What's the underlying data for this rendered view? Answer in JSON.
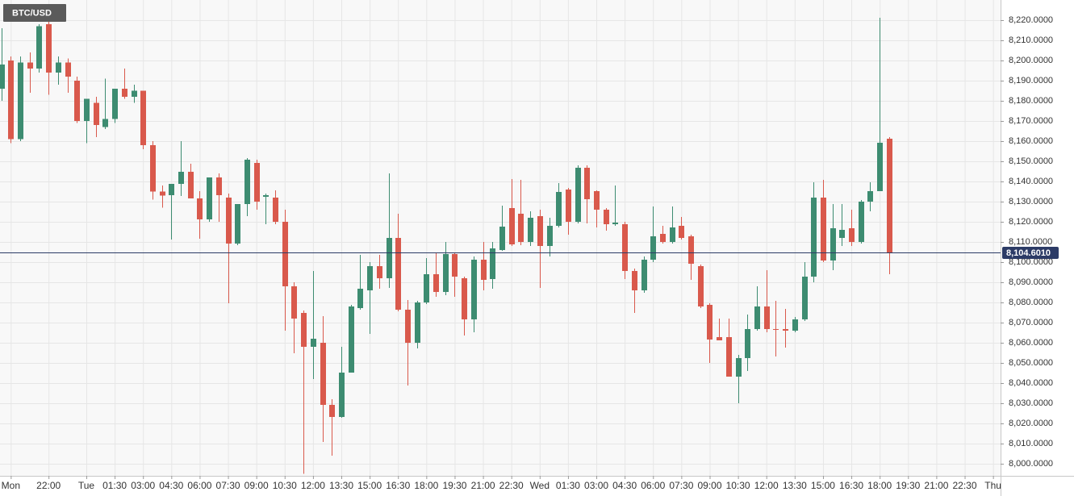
{
  "chart_data": {
    "type": "candlestick",
    "title": "BTC/USD",
    "x": [
      19.5,
      20,
      20.5,
      21,
      21.5,
      22,
      22.5,
      23,
      23.5,
      24,
      24.5,
      25,
      25.5,
      26,
      26.5,
      27,
      27.5,
      28,
      28.5,
      29,
      29.5,
      30,
      30.5,
      31,
      31.5,
      32,
      32.5,
      33,
      33.5,
      34,
      34.5,
      35,
      35.5,
      36,
      36.5,
      37,
      37.5,
      38,
      38.5,
      39,
      39.5,
      40,
      40.5,
      41,
      41.5,
      42,
      42.5,
      43,
      43.5,
      44,
      44.5,
      45,
      45.5,
      46,
      46.5,
      47,
      47.5,
      48,
      48.5,
      49,
      49.5,
      50,
      50.5,
      51,
      51.5,
      52,
      52.5,
      53,
      53.5,
      54,
      54.5,
      55,
      55.5,
      56,
      56.5,
      57,
      57.5,
      58,
      58.5,
      59,
      59.5,
      60,
      60.5,
      61,
      61.5,
      62,
      62.5,
      63,
      63.5,
      64,
      64.5,
      65,
      65.5,
      66,
      66.5
    ],
    "open": [
      8186,
      8200,
      8161,
      8199,
      8196,
      8218,
      8194,
      8199,
      8190,
      8170,
      8179,
      8167,
      8171,
      8186,
      8182,
      8185,
      8158,
      8135,
      8133.2,
      8138.8,
      8144.8,
      8131.6,
      8121.2,
      8142,
      8132,
      8109.2,
      8128.8,
      8149.2,
      8132.4,
      8132,
      8120,
      8088,
      8074.8,
      8058,
      8060,
      8029.2,
      8023.2,
      8045.2,
      8077.2,
      8086,
      8098,
      8092,
      8112,
      8076.4,
      8060,
      8080,
      8094,
      8085.2,
      8104,
      8092,
      8071.6,
      8101.2,
      8091.6,
      8106,
      8126.8,
      8124,
      8110,
      8122.8,
      8108,
      8118,
      8136,
      8120,
      8146.8,
      8135.2,
      8126,
      8118.8,
      8118.8,
      8095.6,
      8086,
      8101.2,
      8114,
      8110,
      8118,
      8112.8,
      8098,
      8078.8,
      8062.8,
      8062.8,
      8043.2,
      8052.4,
      8066.8,
      8078,
      8066.8,
      8066.8,
      8066,
      8071.6,
      8092.8,
      8132,
      8100.8,
      8112,
      8116.8,
      8110,
      8130,
      8135.2,
      8161.2
    ],
    "high": [
      8216,
      8202,
      8202,
      8204,
      8218,
      8220,
      8202,
      8201,
      8192,
      8181,
      8182,
      8191,
      8186,
      8196,
      8188,
      8185,
      8160,
      8138,
      8138.8,
      8160,
      8148.8,
      8135.2,
      8142,
      8144,
      8134,
      8128.8,
      8151.6,
      8150.8,
      8134,
      8135.6,
      8126,
      8090,
      8076,
      8095.6,
      8073.2,
      8032,
      8058,
      8078.8,
      8103.6,
      8100,
      8103.6,
      8144,
      8124,
      8081.2,
      8080.8,
      8102,
      8104.8,
      8110,
      8104.8,
      8092.8,
      8102.8,
      8110,
      8110,
      8128,
      8141.2,
      8140.8,
      8125.2,
      8126,
      8122,
      8139.2,
      8136.8,
      8148,
      8148,
      8135.6,
      8126.8,
      8138,
      8120,
      8096.8,
      8102.8,
      8127.6,
      8118,
      8127.6,
      8122.4,
      8113.6,
      8098.8,
      8079.6,
      8072,
      8072,
      8054,
      8074,
      8088,
      8096,
      8080.8,
      8076.8,
      8072.8,
      8100,
      8139.6,
      8140.8,
      8128.8,
      8128.8,
      8126,
      8130.8,
      8139.6,
      8221.2,
      8162
    ],
    "low": [
      8180,
      8159,
      8160,
      8184,
      8194,
      8183,
      8188,
      8184,
      8169,
      8159,
      8162,
      8166,
      8169,
      8181,
      8179,
      8156,
      8131,
      8127,
      8111.2,
      8132.8,
      8131.6,
      8111.6,
      8120,
      8120,
      8079.6,
      8108.4,
      8122.8,
      8126,
      8118.8,
      8118.8,
      8066,
      8054.8,
      7995,
      8042,
      8010.8,
      8004,
      8022.8,
      8045.2,
      8076.4,
      8064.4,
      8086.8,
      8087.2,
      8075.6,
      8038.8,
      8057.2,
      8079.2,
      8082.8,
      8083.6,
      8082.8,
      8063.6,
      8065.2,
      8086,
      8086.8,
      8105.6,
      8108,
      8108.4,
      8108,
      8087.2,
      8102.8,
      8117.2,
      8113.6,
      8119.2,
      8119.2,
      8117.2,
      8115.6,
      8118,
      8091.6,
      8074.8,
      8084.8,
      8100,
      8109.2,
      8109.2,
      8111.2,
      8091.2,
      8077.2,
      8050,
      8061.2,
      8043.2,
      8030,
      8046,
      8066,
      8065.2,
      8053.2,
      8057.6,
      8065.2,
      8070.8,
      8090,
      8100,
      8096,
      8108,
      8108,
      8109.2,
      8125.2,
      8135.2,
      8094
    ],
    "close": [
      8198,
      8161,
      8199,
      8196,
      8217,
      8194,
      8199,
      8192,
      8170,
      8181,
      8168,
      8171,
      8186,
      8182,
      8185,
      8158,
      8135,
      8133,
      8138.8,
      8144.8,
      8131.6,
      8121.2,
      8142,
      8133.2,
      8109.2,
      8128.8,
      8150.8,
      8130,
      8133.2,
      8120,
      8088,
      8072,
      8058,
      8062,
      8029.2,
      8023.2,
      8045.2,
      8078,
      8086.8,
      8098,
      8092,
      8112,
      8076.4,
      8060,
      8080,
      8094,
      8085.2,
      8104,
      8092.8,
      8071.6,
      8101.2,
      8091.2,
      8106.8,
      8117.6,
      8108.8,
      8110,
      8122,
      8108,
      8118,
      8134.8,
      8120,
      8146.8,
      8131.2,
      8126,
      8118.8,
      8119.6,
      8095.6,
      8086,
      8101.2,
      8112.8,
      8110,
      8117.2,
      8112,
      8099.2,
      8078,
      8061.6,
      8061.2,
      8043.2,
      8052.4,
      8066.8,
      8078,
      8066.8,
      8066.4,
      8066,
      8071.6,
      8092.8,
      8132,
      8100.8,
      8116.8,
      8116,
      8110,
      8130,
      8135.2,
      8159.2,
      8104.601
    ],
    "up_color": "#3d8c71",
    "down_color": "#d9594c",
    "current_price": {
      "value": 8104.601,
      "label": "8,104.6010"
    },
    "current_color": "#2c3b66",
    "xlim": [
      19.43,
      72.4
    ],
    "xticks": [
      {
        "value": 20,
        "label": "Mon"
      },
      {
        "value": 22,
        "label": "22:00"
      },
      {
        "value": 24,
        "label": "Tue"
      },
      {
        "value": 25.5,
        "label": "01:30"
      },
      {
        "value": 27,
        "label": "03:00"
      },
      {
        "value": 28.5,
        "label": "04:30"
      },
      {
        "value": 30,
        "label": "06:00"
      },
      {
        "value": 31.5,
        "label": "07:30"
      },
      {
        "value": 33,
        "label": "09:00"
      },
      {
        "value": 34.5,
        "label": "10:30"
      },
      {
        "value": 36,
        "label": "12:00"
      },
      {
        "value": 37.5,
        "label": "13:30"
      },
      {
        "value": 39,
        "label": "15:00"
      },
      {
        "value": 40.5,
        "label": "16:30"
      },
      {
        "value": 42,
        "label": "18:00"
      },
      {
        "value": 43.5,
        "label": "19:30"
      },
      {
        "value": 45,
        "label": "21:00"
      },
      {
        "value": 46.5,
        "label": "22:30"
      },
      {
        "value": 48,
        "label": "Wed"
      },
      {
        "value": 49.5,
        "label": "01:30"
      },
      {
        "value": 51,
        "label": "03:00"
      },
      {
        "value": 52.5,
        "label": "04:30"
      },
      {
        "value": 54,
        "label": "06:00"
      },
      {
        "value": 55.5,
        "label": "07:30"
      },
      {
        "value": 57,
        "label": "09:00"
      },
      {
        "value": 58.5,
        "label": "10:30"
      },
      {
        "value": 60,
        "label": "12:00"
      },
      {
        "value": 61.5,
        "label": "13:30"
      },
      {
        "value": 63,
        "label": "15:00"
      },
      {
        "value": 64.5,
        "label": "16:30"
      },
      {
        "value": 66,
        "label": "18:00"
      },
      {
        "value": 67.5,
        "label": "19:30"
      },
      {
        "value": 69,
        "label": "21:00"
      },
      {
        "value": 70.5,
        "label": "22:30"
      },
      {
        "value": 72,
        "label": "Thu"
      }
    ],
    "ylim": [
      7994,
      8230
    ],
    "yticks": [
      {
        "value": 8000,
        "label": "8,000.0000"
      },
      {
        "value": 8010,
        "label": "8,010.0000"
      },
      {
        "value": 8020,
        "label": "8,020.0000"
      },
      {
        "value": 8030,
        "label": "8,030.0000"
      },
      {
        "value": 8040,
        "label": "8,040.0000"
      },
      {
        "value": 8050,
        "label": "8,050.0000"
      },
      {
        "value": 8060,
        "label": "8,060.0000"
      },
      {
        "value": 8070,
        "label": "8,070.0000"
      },
      {
        "value": 8080,
        "label": "8,080.0000"
      },
      {
        "value": 8090,
        "label": "8,090.0000"
      },
      {
        "value": 8100,
        "label": "8,100.0000"
      },
      {
        "value": 8110,
        "label": "8,110.0000"
      },
      {
        "value": 8120,
        "label": "8,120.0000"
      },
      {
        "value": 8130,
        "label": "8,130.0000"
      },
      {
        "value": 8140,
        "label": "8,140.0000"
      },
      {
        "value": 8150,
        "label": "8,150.0000"
      },
      {
        "value": 8160,
        "label": "8,160.0000"
      },
      {
        "value": 8170,
        "label": "8,170.0000"
      },
      {
        "value": 8180,
        "label": "8,180.0000"
      },
      {
        "value": 8190,
        "label": "8,190.0000"
      },
      {
        "value": 8200,
        "label": "8,200.0000"
      },
      {
        "value": 8210,
        "label": "8,210.0000"
      },
      {
        "value": 8220,
        "label": "8,220.0000"
      }
    ],
    "grid": true
  }
}
